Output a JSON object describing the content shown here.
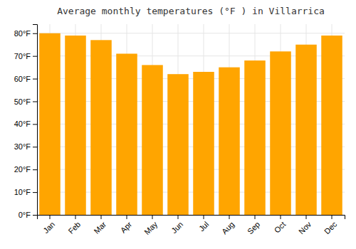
{
  "chart_data": {
    "type": "bar",
    "title": "Average monthly temperatures (°F ) in Villarrica",
    "categories": [
      "Jan",
      "Feb",
      "Mar",
      "Apr",
      "May",
      "Jun",
      "Jul",
      "Aug",
      "Sep",
      "Oct",
      "Nov",
      "Dec"
    ],
    "values": [
      80,
      79,
      77,
      71,
      66,
      62,
      63,
      65,
      68,
      72,
      75,
      79
    ],
    "color": "#FFA500",
    "ylim": [
      0,
      84
    ],
    "yticks": [
      {
        "value": 0,
        "label": "0°F"
      },
      {
        "value": 10,
        "label": "10°F"
      },
      {
        "value": 20,
        "label": "20°F"
      },
      {
        "value": 30,
        "label": "30°F"
      },
      {
        "value": 40,
        "label": "40°F"
      },
      {
        "value": 50,
        "label": "50°F"
      },
      {
        "value": 60,
        "label": "60°F"
      },
      {
        "value": 70,
        "label": "70°F"
      },
      {
        "value": 80,
        "label": "80°F"
      }
    ],
    "grid": true
  }
}
